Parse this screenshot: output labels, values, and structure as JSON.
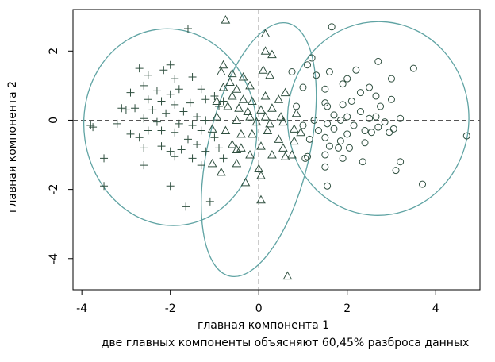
{
  "chart_data": {
    "type": "scatter",
    "xlabel": "главная компонента 1",
    "ylabel": "главная компонента 2",
    "subtitle": "две главных компоненты объясняют 60,45% разброса данных",
    "xlim": [
      -4.2,
      5.0
    ],
    "ylim": [
      -4.9,
      3.2
    ],
    "x_ticks": [
      -4,
      -2,
      0,
      2,
      4
    ],
    "y_ticks": [
      -4,
      -2,
      0,
      2
    ],
    "x_tick_labels": [
      "-4",
      "-2",
      "0",
      "2",
      "4"
    ],
    "y_tick_labels": [
      "-4",
      "-2",
      "0",
      "2"
    ],
    "reference_lines": {
      "x": 0,
      "y": 0,
      "style": "dashed"
    },
    "ellipse_color": "#5fa3a3",
    "point_color": "#2f4f3f",
    "series": [
      {
        "marker": "plus",
        "points": [
          [
            -1.6,
            2.65
          ],
          [
            -2.7,
            1.5
          ],
          [
            -2.0,
            1.6
          ],
          [
            -2.15,
            1.45
          ],
          [
            -2.5,
            1.3
          ],
          [
            -1.9,
            1.2
          ],
          [
            -1.5,
            1.25
          ],
          [
            -2.6,
            1.0
          ],
          [
            -2.3,
            0.85
          ],
          [
            -2.0,
            0.75
          ],
          [
            -1.8,
            0.9
          ],
          [
            -1.3,
            0.9
          ],
          [
            -2.9,
            0.8
          ],
          [
            -2.5,
            0.6
          ],
          [
            -2.2,
            0.55
          ],
          [
            -1.9,
            0.45
          ],
          [
            -1.55,
            0.5
          ],
          [
            -1.2,
            0.6
          ],
          [
            -1.0,
            0.7
          ],
          [
            -0.8,
            0.55
          ],
          [
            -0.9,
            0.4
          ],
          [
            -3.1,
            0.35
          ],
          [
            -3.0,
            0.3
          ],
          [
            -2.8,
            0.35
          ],
          [
            -2.4,
            0.3
          ],
          [
            -2.1,
            0.2
          ],
          [
            -1.7,
            0.25
          ],
          [
            -1.4,
            0.1
          ],
          [
            -3.8,
            -0.15
          ],
          [
            -3.75,
            -0.2
          ],
          [
            -3.2,
            -0.1
          ],
          [
            -2.6,
            0.05
          ],
          [
            -2.3,
            -0.05
          ],
          [
            -1.8,
            -0.1
          ],
          [
            -1.5,
            -0.15
          ],
          [
            -1.2,
            0.0
          ],
          [
            -2.9,
            -0.4
          ],
          [
            -2.5,
            -0.3
          ],
          [
            -2.7,
            -0.5
          ],
          [
            -2.2,
            -0.3
          ],
          [
            -1.9,
            -0.35
          ],
          [
            -1.6,
            -0.55
          ],
          [
            -1.3,
            -0.3
          ],
          [
            -1.0,
            -0.5
          ],
          [
            -2.6,
            -0.8
          ],
          [
            -2.2,
            -0.75
          ],
          [
            -2.0,
            -0.9
          ],
          [
            -1.75,
            -0.85
          ],
          [
            -1.4,
            -0.7
          ],
          [
            -1.2,
            -0.9
          ],
          [
            -0.9,
            -0.8
          ],
          [
            -0.8,
            -1.1
          ],
          [
            -1.9,
            -1.05
          ],
          [
            -1.5,
            -1.1
          ],
          [
            -2.6,
            -1.3
          ],
          [
            -1.3,
            -1.3
          ],
          [
            -3.5,
            -1.1
          ],
          [
            -3.5,
            -1.9
          ],
          [
            -2.0,
            -1.9
          ],
          [
            -1.65,
            -2.5
          ],
          [
            -1.1,
            -2.35
          ]
        ]
      },
      {
        "marker": "triangle",
        "points": [
          [
            -0.75,
            2.9
          ],
          [
            0.15,
            2.5
          ],
          [
            0.15,
            2.0
          ],
          [
            -0.8,
            1.6
          ],
          [
            0.3,
            1.9
          ],
          [
            -0.85,
            1.4
          ],
          [
            -0.6,
            1.35
          ],
          [
            -0.35,
            1.25
          ],
          [
            -0.65,
            1.1
          ],
          [
            -0.2,
            1.0
          ],
          [
            0.1,
            1.45
          ],
          [
            0.25,
            1.3
          ],
          [
            -0.5,
            0.9
          ],
          [
            -0.8,
            0.95
          ],
          [
            -0.6,
            0.7
          ],
          [
            -0.35,
            0.6
          ],
          [
            -0.15,
            0.55
          ],
          [
            0.15,
            0.7
          ],
          [
            0.45,
            0.6
          ],
          [
            0.6,
            0.8
          ],
          [
            -0.95,
            0.55
          ],
          [
            -0.7,
            0.4
          ],
          [
            -0.45,
            0.35
          ],
          [
            -0.25,
            0.25
          ],
          [
            0.05,
            0.3
          ],
          [
            0.3,
            0.35
          ],
          [
            -0.2,
            0.1
          ],
          [
            0.15,
            0.1
          ],
          [
            0.5,
            0.1
          ],
          [
            0.85,
            0.2
          ],
          [
            -0.95,
            0.1
          ],
          [
            -0.5,
            0.0
          ],
          [
            -0.05,
            -0.05
          ],
          [
            0.25,
            -0.1
          ],
          [
            0.55,
            -0.05
          ],
          [
            0.8,
            -0.25
          ],
          [
            -1.05,
            -0.25
          ],
          [
            -0.75,
            -0.3
          ],
          [
            -0.4,
            -0.4
          ],
          [
            -0.15,
            -0.4
          ],
          [
            0.2,
            -0.3
          ],
          [
            0.45,
            -0.55
          ],
          [
            0.8,
            -0.6
          ],
          [
            0.95,
            -0.35
          ],
          [
            -0.6,
            -0.7
          ],
          [
            -0.4,
            -0.8
          ],
          [
            0.05,
            -0.75
          ],
          [
            0.55,
            -0.8
          ],
          [
            -0.5,
            -0.85
          ],
          [
            -0.2,
            -1.0
          ],
          [
            0.3,
            -1.0
          ],
          [
            0.6,
            -1.05
          ],
          [
            0.75,
            -1.0
          ],
          [
            -1.05,
            -1.25
          ],
          [
            -0.5,
            -1.25
          ],
          [
            0.0,
            -1.4
          ],
          [
            -0.85,
            -1.5
          ],
          [
            -0.3,
            -1.8
          ],
          [
            0.05,
            -1.6
          ],
          [
            0.05,
            -2.3
          ],
          [
            0.65,
            -4.5
          ]
        ]
      },
      {
        "marker": "circle",
        "points": [
          [
            1.65,
            2.7
          ],
          [
            3.5,
            1.5
          ],
          [
            2.7,
            1.7
          ],
          [
            1.2,
            1.8
          ],
          [
            1.1,
            1.6
          ],
          [
            2.2,
            1.45
          ],
          [
            1.6,
            1.4
          ],
          [
            0.75,
            1.4
          ],
          [
            1.3,
            1.3
          ],
          [
            2.0,
            1.2
          ],
          [
            3.0,
            1.2
          ],
          [
            1.9,
            1.05
          ],
          [
            2.5,
            0.95
          ],
          [
            1.0,
            0.95
          ],
          [
            1.5,
            0.9
          ],
          [
            2.3,
            0.8
          ],
          [
            2.65,
            0.7
          ],
          [
            3.0,
            0.6
          ],
          [
            2.1,
            0.55
          ],
          [
            1.5,
            0.5
          ],
          [
            0.85,
            0.4
          ],
          [
            2.75,
            0.4
          ],
          [
            1.9,
            0.45
          ],
          [
            1.55,
            0.4
          ],
          [
            2.3,
            0.25
          ],
          [
            2.0,
            0.1
          ],
          [
            1.7,
            0.15
          ],
          [
            2.5,
            0.05
          ],
          [
            2.85,
            -0.05
          ],
          [
            3.2,
            0.05
          ],
          [
            2.65,
            0.1
          ],
          [
            1.85,
            0.0
          ],
          [
            1.25,
            0.0
          ],
          [
            1.55,
            -0.1
          ],
          [
            1.0,
            -0.15
          ],
          [
            2.15,
            -0.15
          ],
          [
            2.7,
            -0.2
          ],
          [
            3.05,
            -0.25
          ],
          [
            1.7,
            -0.25
          ],
          [
            1.35,
            -0.3
          ],
          [
            2.4,
            -0.3
          ],
          [
            2.55,
            -0.35
          ],
          [
            2.95,
            -0.35
          ],
          [
            2.0,
            -0.4
          ],
          [
            1.5,
            -0.5
          ],
          [
            1.15,
            -0.55
          ],
          [
            1.85,
            -0.6
          ],
          [
            2.4,
            -0.65
          ],
          [
            1.6,
            -0.75
          ],
          [
            2.05,
            -0.8
          ],
          [
            1.8,
            -0.8
          ],
          [
            1.1,
            -1.05
          ],
          [
            1.5,
            -1.0
          ],
          [
            1.9,
            -1.1
          ],
          [
            2.35,
            -1.2
          ],
          [
            3.2,
            -1.2
          ],
          [
            1.05,
            -1.1
          ],
          [
            1.5,
            -1.35
          ],
          [
            3.1,
            -1.45
          ],
          [
            3.7,
            -1.85
          ],
          [
            1.55,
            -1.9
          ],
          [
            4.7,
            -0.45
          ]
        ]
      }
    ],
    "ellipses": [
      {
        "center": [
          -2.0,
          -0.2
        ],
        "rx": 1.95,
        "ry": 2.85,
        "angle_deg": -8
      },
      {
        "center": [
          0.0,
          -0.85
        ],
        "rx": 1.15,
        "ry": 3.75,
        "angle_deg": 13
      },
      {
        "center": [
          2.7,
          0.05
        ],
        "rx": 2.05,
        "ry": 2.8,
        "angle_deg": 2
      }
    ]
  }
}
